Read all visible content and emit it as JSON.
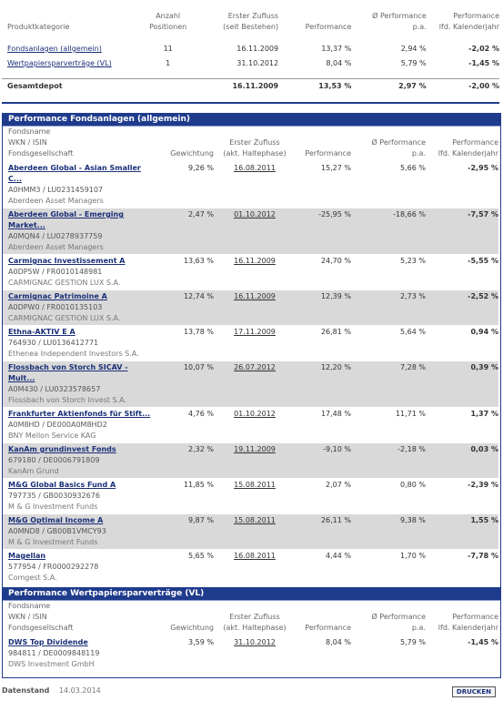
{
  "summary": {
    "header": [
      [
        "Produktkategorie"
      ],
      [
        "Anzahl",
        "Positionen"
      ],
      [
        "Erster Zufluss",
        "(seit Bestehen)"
      ],
      [
        "Performance"
      ],
      [
        "Ø Performance",
        "p.a."
      ],
      [
        "Performance",
        "lfd. Kalenderjahr"
      ]
    ],
    "rows": [
      [
        "Fondsanlagen (allgemein)",
        "11",
        "16.11.2009",
        "13,37 %",
        "2,94 %",
        "-2,02 %"
      ],
      [
        "Wertpapiersparverträge (VL)",
        "1",
        "31.10.2012",
        "8,04 %",
        "5,79 %",
        "-1,45 %"
      ]
    ],
    "total": [
      "Gesamtdepot",
      "16.11.2009",
      "13,53 %",
      "2,97 %",
      "-2,00 %"
    ]
  },
  "sections": [
    {
      "title": "Performance Fondsanlagen (allgemein)",
      "header": [
        [
          "Fondsname",
          "WKN / ISIN",
          "Fondsgesellschaft"
        ],
        [
          "Gewichtung"
        ],
        [
          "Erster Zufluss",
          "(akt. Haltephase)"
        ],
        [
          "Performance"
        ],
        [
          "Ø Performance",
          "p.a."
        ],
        [
          "Performance",
          "lfd. Kalenderjahr"
        ]
      ],
      "rows": [
        {
          "name": "Aberdeen Global - Asian Smaller C...",
          "id": "A0HMM3 / LU0231459107",
          "company": "Aberdeen Asset Managers",
          "weight": "9,26 %",
          "since": "16.08.2011",
          "perf": "15,27 %",
          "perf_pa": "5,66 %",
          "perf_ytd": "-2,95 %"
        },
        {
          "name": "Aberdeen Global - Emerging Market...",
          "id": "A0MQN4 / LU0278937759",
          "company": "Aberdeen Asset Managers",
          "weight": "2,47 %",
          "since": "01.10.2012",
          "perf": "-25,95 %",
          "perf_pa": "-18,66 %",
          "perf_ytd": "-7,57 %"
        },
        {
          "name": "Carmignac Investissement A",
          "id": "A0DP5W / FR0010148981",
          "company": "CARMIGNAC GESTION LUX S.A.",
          "weight": "13,63 %",
          "since": "16.11.2009",
          "perf": "24,70 %",
          "perf_pa": "5,23 %",
          "perf_ytd": "-5,55 %"
        },
        {
          "name": "Carmignac Patrimoine A",
          "id": "A0DPW0 / FR0010135103",
          "company": "CARMIGNAC GESTION LUX S.A.",
          "weight": "12,74 %",
          "since": "16.11.2009",
          "perf": "12,39 %",
          "perf_pa": "2,73 %",
          "perf_ytd": "-2,52 %"
        },
        {
          "name": "Ethna-AKTIV E A",
          "id": "764930 / LU0136412771",
          "company": "Ethenea Independent Investors S.A.",
          "weight": "13,78 %",
          "since": "17.11.2009",
          "perf": "26,81 %",
          "perf_pa": "5,64 %",
          "perf_ytd": "0,94 %"
        },
        {
          "name": "Flossbach von Storch SICAV - Mult...",
          "id": "A0M430 / LU0323578657",
          "company": "Flossbach von Storch Invest S.A.",
          "weight": "10,07 %",
          "since": "26.07.2012",
          "perf": "12,20 %",
          "perf_pa": "7,28 %",
          "perf_ytd": "0,39 %"
        },
        {
          "name": "Frankfurter Aktienfonds für Stift...",
          "id": "A0M8HD / DE000A0M8HD2",
          "company": "BNY Mellon Service KAG",
          "weight": "4,76 %",
          "since": "01.10.2012",
          "perf": "17,48 %",
          "perf_pa": "11,71 %",
          "perf_ytd": "1,37 %"
        },
        {
          "name": "KanAm grundinvest Fonds",
          "id": "679180 / DE0006791809",
          "company": "KanAm Grund",
          "weight": "2,32 %",
          "since": "19.11.2009",
          "perf": "-9,10 %",
          "perf_pa": "-2,18 %",
          "perf_ytd": "0,03 %"
        },
        {
          "name": "M&G Global Basics Fund A",
          "id": "797735 / GB0030932676",
          "company": "M & G Investment Funds",
          "weight": "11,85 %",
          "since": "15.08.2011",
          "perf": "2,07 %",
          "perf_pa": "0,80 %",
          "perf_ytd": "-2,39 %"
        },
        {
          "name": "M&G Optimal Income A",
          "id": "A0MND8 / GB00B1VMCY93",
          "company": "M & G Investment Funds",
          "weight": "9,87 %",
          "since": "15.08.2011",
          "perf": "26,11 %",
          "perf_pa": "9,38 %",
          "perf_ytd": "1,55 %"
        },
        {
          "name": "Magellan",
          "id": "577954 / FR0000292278",
          "company": "Comgest S.A.",
          "weight": "5,65 %",
          "since": "16.08.2011",
          "perf": "4,44 %",
          "perf_pa": "1,70 %",
          "perf_ytd": "-7,78 %"
        }
      ]
    },
    {
      "title": "Performance Wertpapiersparverträge (VL)",
      "header": [
        [
          "Fondsname",
          "WKN / ISIN",
          "Fondsgesellschaft"
        ],
        [
          "Gewichtung"
        ],
        [
          "Erster Zufluss",
          "(akt. Haltephase)"
        ],
        [
          "Performance"
        ],
        [
          "Ø Performance",
          "p.a."
        ],
        [
          "Performance",
          "lfd. Kalenderjahr"
        ]
      ],
      "rows": [
        {
          "name": "DWS Top Dividende",
          "id": "984811 / DE0009848119",
          "company": "DWS Investment GmbH",
          "weight": "3,59 %",
          "since": "31.10.2012",
          "perf": "8,04 %",
          "perf_pa": "5,79 %",
          "perf_ytd": "-1,45 %"
        }
      ]
    }
  ],
  "footer": {
    "label": "Datenstand",
    "date": "14.03.2014",
    "button": "DRUCKEN"
  }
}
